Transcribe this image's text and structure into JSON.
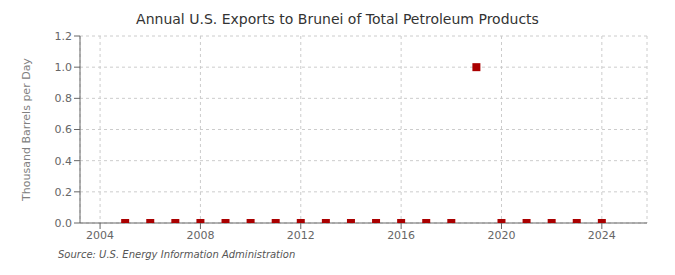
{
  "chart_data": {
    "type": "scatter",
    "title": "Annual U.S. Exports to Brunei of Total Petroleum Products",
    "ylabel": "Thousand Barrels per Day",
    "annotations": [
      "Source: U.S. Energy Information Administration"
    ],
    "x": [
      2005,
      2006,
      2007,
      2008,
      2009,
      2010,
      2011,
      2012,
      2013,
      2014,
      2015,
      2016,
      2017,
      2018,
      2019,
      2020,
      2021,
      2022,
      2023,
      2024
    ],
    "values": [
      0.0,
      0.0,
      0.0,
      0.0,
      0.0,
      0.0,
      0.0,
      0.0,
      0.0,
      0.0,
      0.0,
      0.0,
      0.0,
      0.0,
      1.0,
      0.0,
      0.0,
      0.0,
      0.0,
      0.0
    ],
    "color": "#AA0000",
    "marker": "square",
    "xlim": [
      2003.2,
      2025.8
    ],
    "ylim": [
      0.0,
      1.2
    ],
    "xticks": [
      2004,
      2008,
      2012,
      2016,
      2020,
      2024
    ],
    "yticks": [
      {
        "value": 0.0,
        "label": "0.0"
      },
      {
        "value": 0.2,
        "label": "0.2"
      },
      {
        "value": 0.4,
        "label": "0.4"
      },
      {
        "value": 0.6,
        "label": "0.6"
      },
      {
        "value": 0.8,
        "label": "0.8"
      },
      {
        "value": 1.0,
        "label": "1.0"
      },
      {
        "value": 1.2,
        "label": "1.2"
      }
    ],
    "grid": true
  }
}
